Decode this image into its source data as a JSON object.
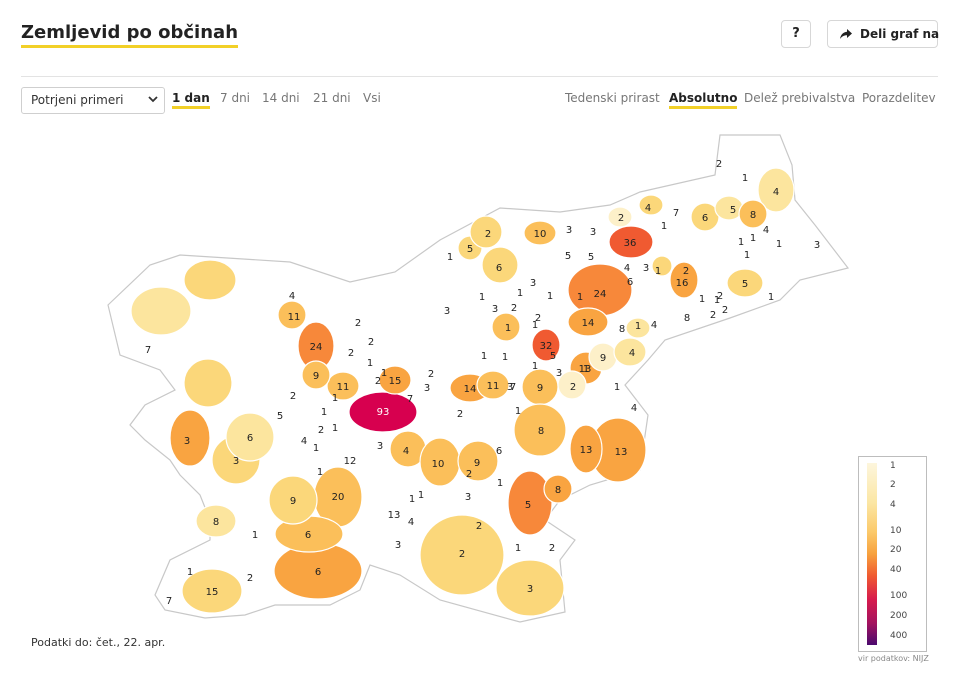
{
  "header": {
    "title": "Zemljevid po občinah",
    "help_label": "?",
    "share_label": "Deli graf na"
  },
  "controls": {
    "select_value": "Potrjeni primeri",
    "time_tabs": [
      {
        "label": "1 dan",
        "active": true
      },
      {
        "label": "7 dni",
        "active": false
      },
      {
        "label": "14 dni",
        "active": false
      },
      {
        "label": "21 dni",
        "active": false
      },
      {
        "label": "Vsi",
        "active": false
      }
    ],
    "mode_tabs": [
      {
        "label": "Tedenski prirast",
        "active": false
      },
      {
        "label": "Absolutno",
        "active": true
      },
      {
        "label": "Delež prebivalstva",
        "active": false
      },
      {
        "label": "Porazdelitev",
        "active": false
      }
    ]
  },
  "legend": {
    "labels": [
      "1",
      "2",
      "4",
      "10",
      "20",
      "40",
      "100",
      "200",
      "400"
    ],
    "source": "vir podatkov: NIJZ"
  },
  "footnote": "Podatki do: čet., 22. apr.",
  "colors": {
    "accent": "#f2d027",
    "empty_municipality": "#ffffff",
    "border": "#cccccc"
  },
  "map_values": [
    "2",
    "1",
    "4",
    "8",
    "5",
    "4",
    "1",
    "1",
    "1",
    "1",
    "3",
    "1",
    "5",
    "2",
    "6",
    "4",
    "1",
    "7",
    "36",
    "2",
    "3",
    "5",
    "1",
    "2",
    "3",
    "10",
    "5",
    "4",
    "6",
    "3",
    "1",
    "5",
    "3",
    "6",
    "24",
    "16",
    "2",
    "1",
    "1",
    "2",
    "2",
    "8",
    "4",
    "14",
    "8",
    "1",
    "4",
    "9",
    "1",
    "1",
    "2",
    "3",
    "3",
    "1",
    "11",
    "4",
    "24",
    "2",
    "2",
    "2",
    "1",
    "1",
    "1",
    "32",
    "5",
    "2",
    "1",
    "3",
    "2",
    "1",
    "1",
    "1",
    "1",
    "1",
    "13",
    "4",
    "7",
    "1",
    "9",
    "11",
    "1",
    "2",
    "15",
    "3",
    "14",
    "11",
    "3",
    "9",
    "2",
    "2",
    "1",
    "1",
    "93",
    "7",
    "1",
    "2",
    "5",
    "2",
    "1",
    "4",
    "1",
    "3",
    "2",
    "12",
    "3",
    "6",
    "3",
    "4",
    "10",
    "9",
    "8",
    "13",
    "13",
    "8",
    "1",
    "1",
    "6",
    "1",
    "3",
    "5",
    "9",
    "20",
    "13",
    "4",
    "2",
    "8",
    "1",
    "6",
    "2",
    "1",
    "3",
    "2",
    "7",
    "15",
    "1",
    "2",
    "6",
    "3",
    "7"
  ]
}
